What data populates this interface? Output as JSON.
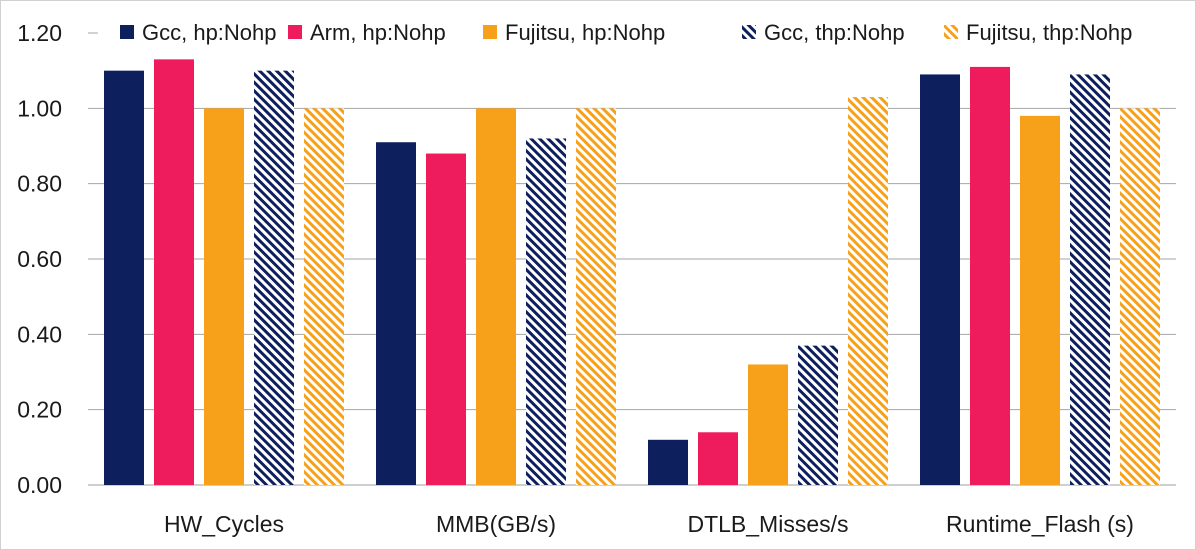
{
  "chart_data": {
    "type": "bar",
    "title": "",
    "xlabel": "",
    "ylabel": "",
    "ylim": [
      0,
      1.2
    ],
    "yticks": [
      "0.00",
      "0.20",
      "0.40",
      "0.60",
      "0.80",
      "1.00",
      "1.20"
    ],
    "grid": true,
    "legend_position": "top",
    "categories": [
      "HW_Cycles",
      "MMB(GB/s)",
      "DTLB_Misses/s",
      "Runtime_Flash (s)"
    ],
    "series": [
      {
        "name": "Gcc, hp:Nohp",
        "color": "#0d1f5c",
        "pattern": "solid",
        "values": [
          1.1,
          0.91,
          0.12,
          1.09
        ]
      },
      {
        "name": "Arm, hp:Nohp",
        "color": "#ee1c5c",
        "pattern": "solid",
        "values": [
          1.13,
          0.88,
          0.14,
          1.11
        ]
      },
      {
        "name": "Fujitsu, hp:Nohp",
        "color": "#f7a11a",
        "pattern": "solid",
        "values": [
          1.0,
          1.0,
          0.32,
          0.98
        ]
      },
      {
        "name": "Gcc, thp:Nohp",
        "color": "#0d1f5c",
        "pattern": "hatch",
        "values": [
          1.1,
          0.92,
          0.37,
          1.09
        ]
      },
      {
        "name": "Fujitsu, thp:Nohp",
        "color": "#f7a11a",
        "pattern": "hatch",
        "values": [
          1.0,
          1.0,
          1.03,
          1.0
        ]
      }
    ]
  }
}
